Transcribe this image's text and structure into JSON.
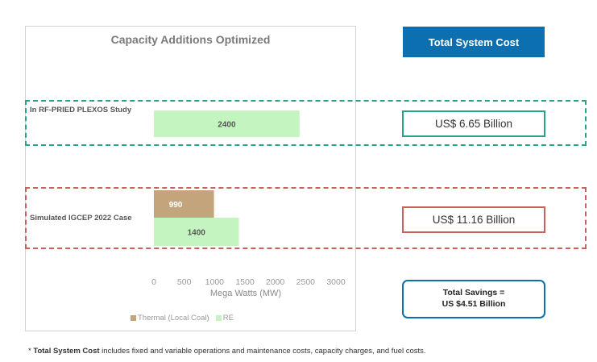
{
  "chart_data": {
    "type": "bar",
    "orientation": "horizontal",
    "stacked": false,
    "title": "Capacity Additions Optimized",
    "categories": [
      "In RF-PRIED PLEXOS Study",
      "Simulated IGCEP 2022 Case"
    ],
    "series": [
      {
        "name": "Thermal (Local Coal)",
        "color": "#c4a57b",
        "values": [
          null,
          990
        ]
      },
      {
        "name": "RE",
        "color": "#c4f5c1",
        "values": [
          2400,
          1400
        ]
      }
    ],
    "xlabel": "Mega Watts (MW)",
    "ylabel": "",
    "xlim": [
      0,
      3000
    ],
    "xticks": [
      0,
      500,
      1000,
      1500,
      2000,
      2500,
      3000
    ],
    "grid": false,
    "legend_position": "bottom"
  },
  "cost_panel": {
    "header": "Total System Cost",
    "plexos_cost": "US$ 6.65 Billion",
    "igcep_cost": "US$ 11.16 Billion",
    "savings_line1": "Total Savings =",
    "savings_line2": "US $4.51 Billion"
  },
  "footnote": {
    "prefix": "* ",
    "bold": "Total System Cost",
    "rest": " includes fixed and variable operations and maintenance costs, capacity charges, and fuel costs."
  },
  "colors": {
    "accent_blue": "#0c6fb0",
    "green_outline": "#27a38a",
    "red_outline": "#c9615a"
  }
}
